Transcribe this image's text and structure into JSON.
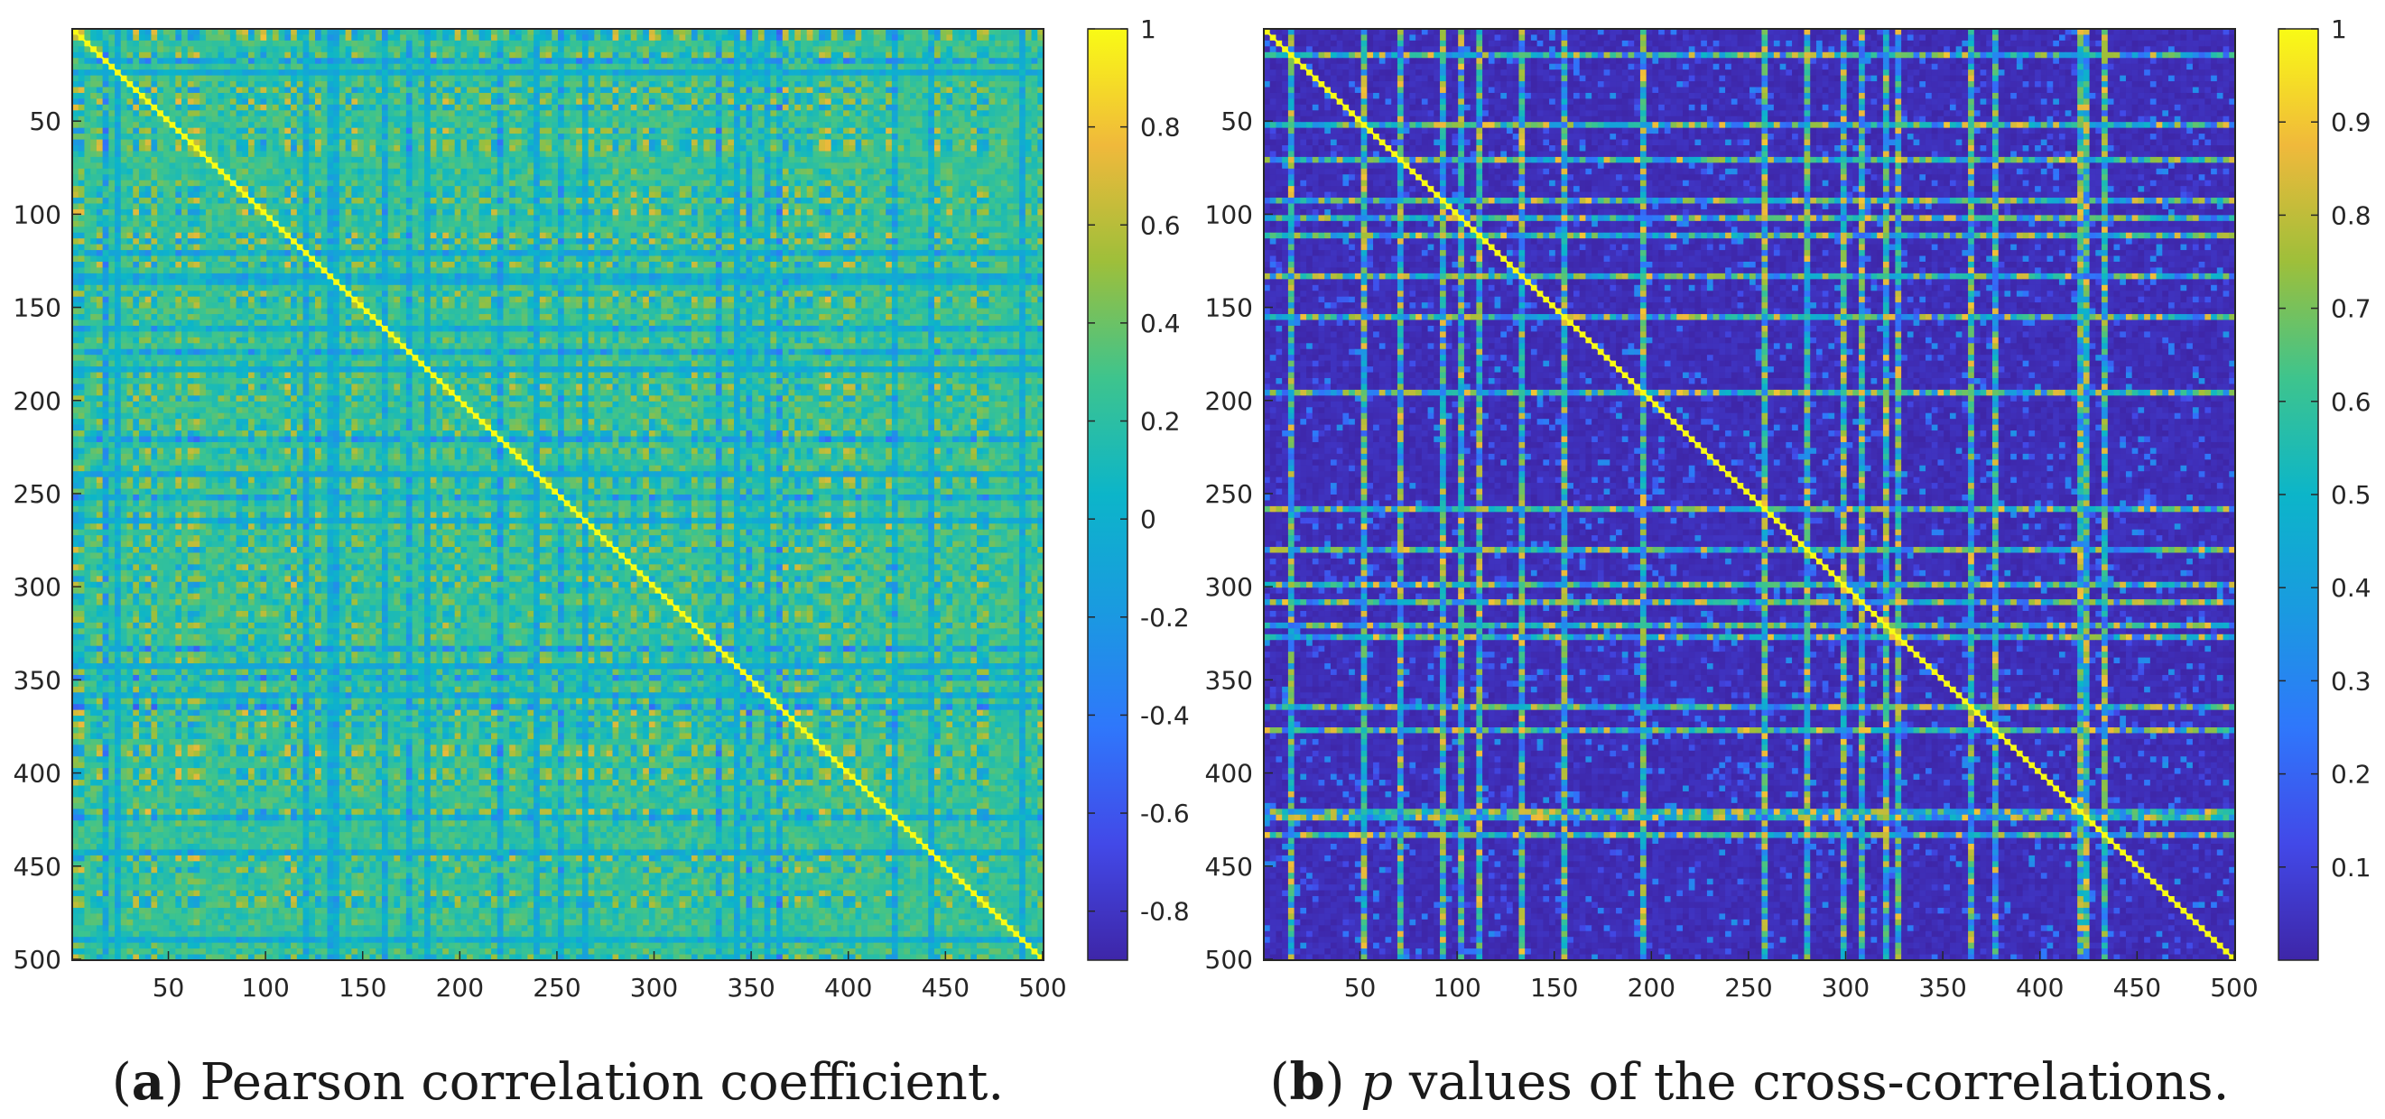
{
  "chart_data": [
    {
      "type": "heatmap",
      "panel_label": "a",
      "caption": "Pearson correlation coefficient.",
      "x_range": [
        1,
        500
      ],
      "y_range": [
        1,
        500
      ],
      "y_direction": "reversed",
      "x_ticks": [
        "50",
        "100",
        "150",
        "200",
        "250",
        "300",
        "350",
        "400",
        "450",
        "500"
      ],
      "y_ticks": [
        "50",
        "100",
        "150",
        "200",
        "250",
        "300",
        "350",
        "400",
        "450",
        "500"
      ],
      "colorbar": {
        "min": -0.9,
        "max": 1,
        "ticks": [
          "-0.8",
          "-0.6",
          "-0.4",
          "-0.2",
          "0",
          "0.2",
          "0.4",
          "0.6",
          "0.8",
          "1"
        ],
        "colormap": "parula"
      },
      "values_note": "500x500 matrix; diagonal = 1; off-diagonal mostly between -0.4 and 0.8",
      "grid": false,
      "legend": "colorbar-right"
    },
    {
      "type": "heatmap",
      "panel_label": "b",
      "caption_var": "p",
      "caption": " values of the cross-correlations.",
      "x_range": [
        1,
        500
      ],
      "y_range": [
        1,
        500
      ],
      "y_direction": "reversed",
      "x_ticks": [
        "50",
        "100",
        "150",
        "200",
        "250",
        "300",
        "350",
        "400",
        "450",
        "500"
      ],
      "y_ticks": [
        "50",
        "100",
        "150",
        "200",
        "250",
        "300",
        "350",
        "400",
        "450",
        "500"
      ],
      "colorbar": {
        "min": 0,
        "max": 1,
        "ticks": [
          "0.1",
          "0.2",
          "0.3",
          "0.4",
          "0.5",
          "0.6",
          "0.7",
          "0.8",
          "0.9",
          "1"
        ],
        "colormap": "parula"
      },
      "values_note": "500x500 matrix; diagonal = 1; off-diagonal mostly near 0 with bright row/column bands",
      "grid": false,
      "legend": "colorbar-right"
    }
  ]
}
